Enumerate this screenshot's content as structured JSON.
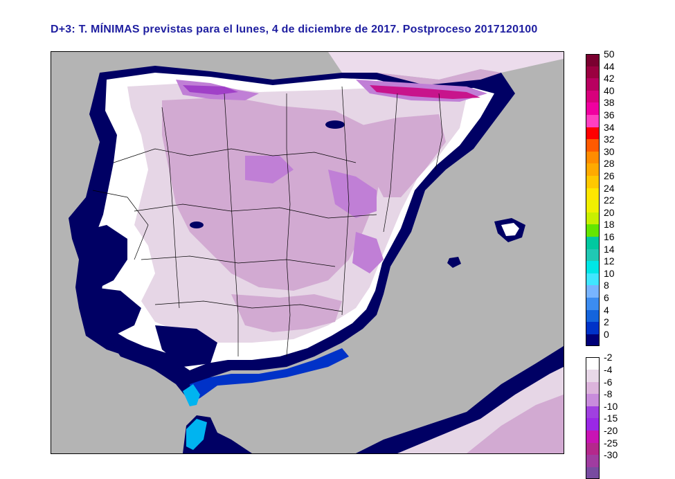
{
  "title": "D+3: T. MÍNIMAS previstas para el lunes, 4 de diciembre de 2017. Postproceso 2017120100",
  "map": {
    "colors": {
      "sea": "#b4b4b4",
      "land_zero": "#ffffff",
      "light_neg": "#e6d6e6",
      "mid_neg": "#d2aad2",
      "deep_neg": "#c07fd6",
      "very_deep_neg": "#a040c8",
      "cold_magenta": "#c8148c",
      "coast_navy": "#000064",
      "coast_blue": "#0032c8",
      "coast_cyan": "#00b4f0",
      "border": "#000000"
    }
  },
  "legend": {
    "upper": [
      {
        "label": "50",
        "color": "#7a0030"
      },
      {
        "label": "44",
        "color": "#9a0040"
      },
      {
        "label": "42",
        "color": "#b80060"
      },
      {
        "label": "40",
        "color": "#d8007c"
      },
      {
        "label": "38",
        "color": "#f000a0"
      },
      {
        "label": "36",
        "color": "#ff40c0"
      },
      {
        "label": "34",
        "color": "#ff0000"
      },
      {
        "label": "32",
        "color": "#ff5a00"
      },
      {
        "label": "30",
        "color": "#ff8c00"
      },
      {
        "label": "28",
        "color": "#ffaa00"
      },
      {
        "label": "26",
        "color": "#ffc800"
      },
      {
        "label": "24",
        "color": "#ffe600"
      },
      {
        "label": "22",
        "color": "#f0f000"
      },
      {
        "label": "20",
        "color": "#c8f000"
      },
      {
        "label": "18",
        "color": "#64e600"
      },
      {
        "label": "16",
        "color": "#00c8a0"
      },
      {
        "label": "14",
        "color": "#20c8b4"
      },
      {
        "label": "12",
        "color": "#00e6e6"
      },
      {
        "label": "10",
        "color": "#40e6ff"
      },
      {
        "label": "8",
        "color": "#78b4ff"
      },
      {
        "label": "6",
        "color": "#3c8cf0"
      },
      {
        "label": "4",
        "color": "#1464dc"
      },
      {
        "label": "2",
        "color": "#0032c8"
      },
      {
        "label": "0",
        "color": "#000078"
      }
    ],
    "lower": [
      {
        "label": "-2",
        "color": "#ffffff"
      },
      {
        "label": "-4",
        "color": "#e8d8e8"
      },
      {
        "label": "-6",
        "color": "#dcb4dc"
      },
      {
        "label": "-8",
        "color": "#c88cdc"
      },
      {
        "label": "-10",
        "color": "#a040e0"
      },
      {
        "label": "-15",
        "color": "#9a28e6"
      },
      {
        "label": "-20",
        "color": "#c814b4"
      },
      {
        "label": "-25",
        "color": "#b4288c"
      },
      {
        "label": "-30",
        "color": "#a03ca0"
      },
      {
        "label": "",
        "color": "#784ba0"
      }
    ]
  }
}
